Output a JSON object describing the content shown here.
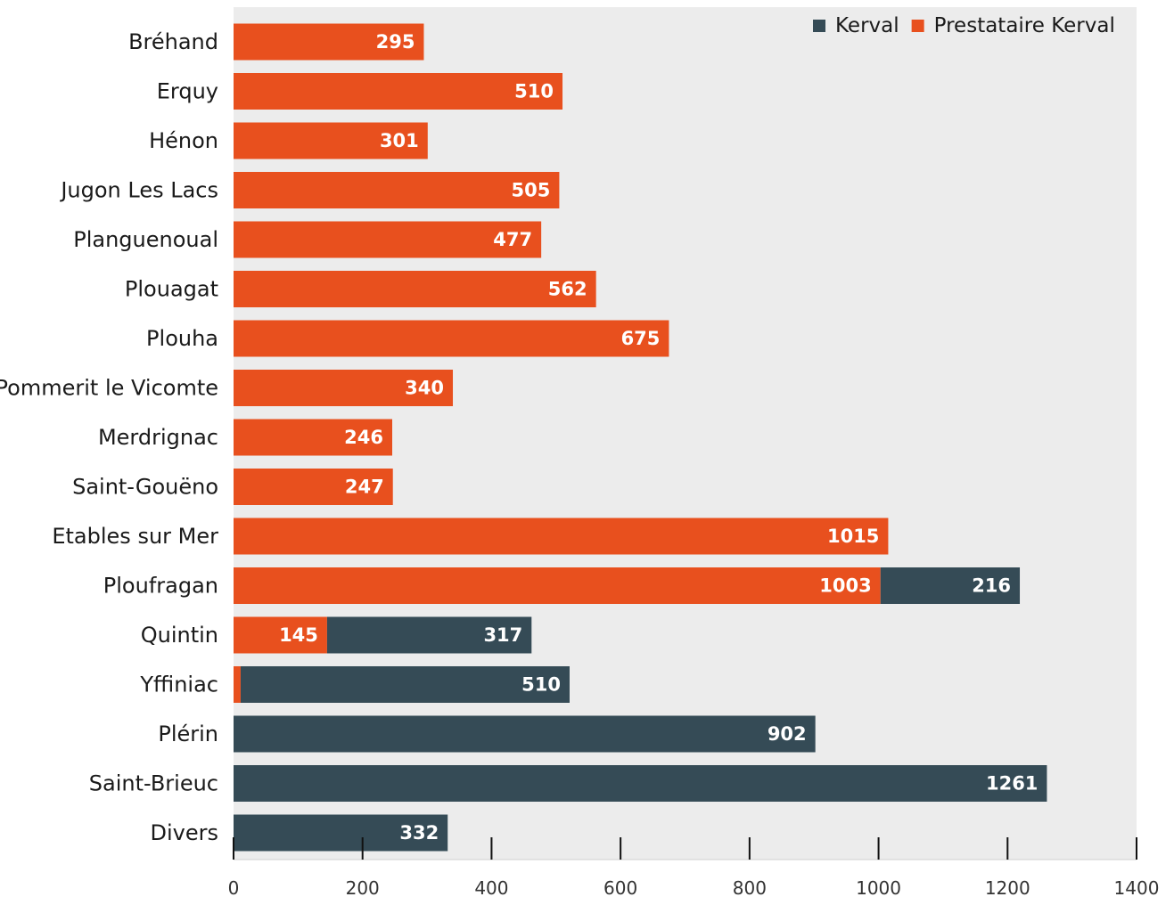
{
  "chart_data": {
    "type": "bar",
    "orientation": "horizontal",
    "stacked": true,
    "categories": [
      "Bréhand",
      "Erquy",
      "Hénon",
      "Jugon Les Lacs",
      "Planguenoual",
      "Plouagat",
      "Plouha",
      "Pommerit le Vicomte",
      "Merdrignac",
      "Saint-Gouëno",
      "Etables sur Mer",
      "Ploufragan",
      "Quintin",
      "Yffiniac",
      "Plérin",
      "Saint-Brieuc",
      "Divers"
    ],
    "series": [
      {
        "name": "Prestataire Kerval",
        "color": "#e8501e",
        "values": [
          295,
          510,
          301,
          505,
          477,
          562,
          675,
          340,
          246,
          247,
          1015,
          1003,
          145,
          11,
          0,
          0,
          0
        ]
      },
      {
        "name": "Kerval",
        "color": "#354b56",
        "values": [
          0,
          0,
          0,
          0,
          0,
          0,
          0,
          0,
          0,
          0,
          0,
          216,
          317,
          510,
          902,
          1261,
          332
        ]
      }
    ],
    "xlim": [
      0,
      1400
    ],
    "x_ticks": [
      0,
      200,
      400,
      600,
      800,
      1000,
      1200,
      1400
    ],
    "grid": false,
    "legend_position": "top-right",
    "legend_order": [
      "Kerval",
      "Prestataire Kerval"
    ],
    "background_color": "#ececec"
  }
}
